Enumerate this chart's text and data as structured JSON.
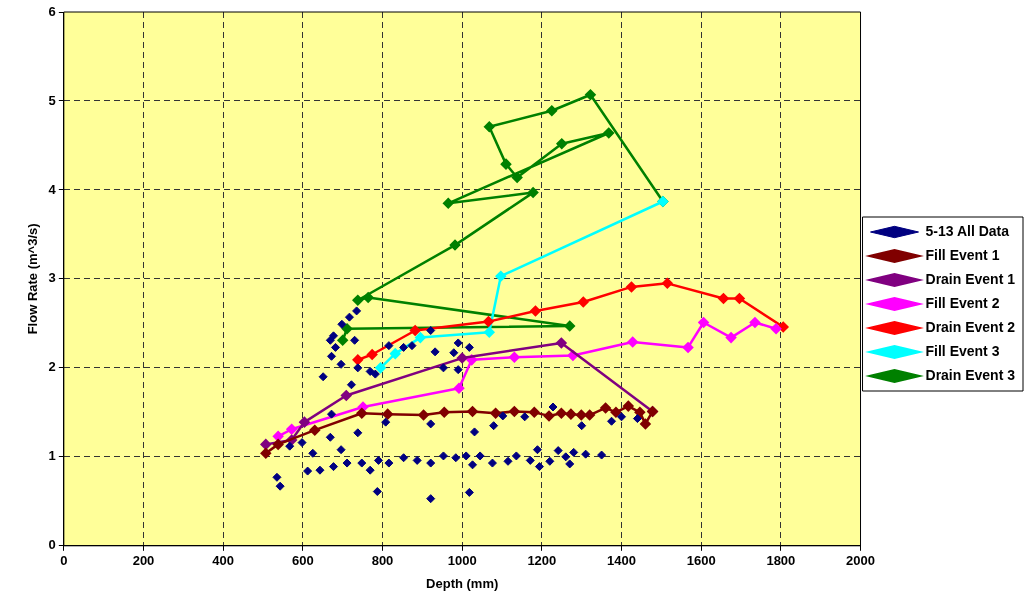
{
  "chart_data": {
    "type": "scatter",
    "xlabel": "Depth (mm)",
    "ylabel": "Flow Rate (m^3/s)",
    "xlim": [
      0,
      2000
    ],
    "xticks": [
      0,
      200,
      400,
      600,
      800,
      1000,
      1200,
      1400,
      1600,
      1800,
      2000
    ],
    "ylim": [
      0,
      6
    ],
    "yticks": [
      0,
      1,
      2,
      3,
      4,
      5,
      6
    ],
    "grid": true,
    "legend": "right",
    "marker": "diamond",
    "line_style": "solid",
    "series": [
      {
        "name": "5-13 All Data",
        "type": "scatter",
        "color": "#000080",
        "x": [
          535,
          543,
          787,
          921,
          1018,
          735,
          717,
          698,
          677,
          669,
          682,
          672,
          696,
          651,
          722,
          730,
          738,
          769,
          782,
          816,
          853,
          874,
          921,
          932,
          953,
          979,
          990,
          990,
          1018,
          672,
          738,
          808,
          921,
          1031,
          1079,
          1102,
          1157,
          1228,
          669,
          625,
          696,
          598,
          567,
          612,
          643,
          677,
          711,
          748,
          769,
          790,
          816,
          853,
          887,
          921,
          953,
          984,
          1010,
          1026,
          1045,
          1076,
          1115,
          1136,
          1171,
          1189,
          1194,
          1220,
          1241,
          1260,
          1270,
          1280,
          1310,
          1350,
          1300,
          1375,
          1400,
          1440
        ],
        "values": [
          0.77,
          0.67,
          0.61,
          0.53,
          0.6,
          2.64,
          2.57,
          2.49,
          2.36,
          2.31,
          2.23,
          2.13,
          2.04,
          1.9,
          1.81,
          2.31,
          2,
          1.96,
          1.93,
          2.25,
          2.23,
          2.25,
          2.42,
          2.18,
          2,
          2.17,
          2.28,
          1.98,
          2.23,
          1.48,
          1.27,
          1.39,
          1.37,
          1.28,
          1.35,
          1.46,
          1.45,
          1.56,
          1.22,
          1.04,
          1.08,
          1.16,
          1.12,
          0.84,
          0.85,
          0.89,
          0.93,
          0.93,
          0.85,
          0.96,
          0.93,
          0.99,
          0.96,
          0.93,
          1.01,
          0.99,
          1.01,
          0.91,
          1.01,
          0.93,
          0.95,
          1.01,
          0.96,
          1.08,
          0.89,
          0.95,
          1.07,
          1,
          0.92,
          1.05,
          1.03,
          1.02,
          1.35,
          1.4,
          1.45,
          1.43
        ]
      },
      {
        "name": "Fill Event 1",
        "type": "line",
        "color": "#800000",
        "x": [
          507,
          538,
          630,
          748,
          813,
          903,
          955,
          1026,
          1084,
          1131,
          1181,
          1218,
          1249,
          1273,
          1299,
          1320,
          1360,
          1386,
          1417,
          1446,
          1460,
          1478
        ],
        "values": [
          1.04,
          1.14,
          1.3,
          1.49,
          1.48,
          1.47,
          1.5,
          1.51,
          1.49,
          1.51,
          1.5,
          1.46,
          1.49,
          1.48,
          1.47,
          1.47,
          1.55,
          1.5,
          1.57,
          1.5,
          1.37,
          1.51
        ]
      },
      {
        "name": "Drain Event 1",
        "type": "line",
        "color": "#800080",
        "x": [
          507,
          572,
          604,
          709,
          1000,
          1249,
          1478
        ],
        "values": [
          1.14,
          1.19,
          1.39,
          1.69,
          2.11,
          2.28,
          1.51
        ]
      },
      {
        "name": "Fill Event 2",
        "type": "line",
        "color": "#ff00ff",
        "x": [
          538,
          572,
          751,
          992,
          1024,
          1131,
          1278,
          1428,
          1567,
          1606,
          1675,
          1735,
          1788
        ],
        "values": [
          1.23,
          1.31,
          1.56,
          1.77,
          2.09,
          2.12,
          2.14,
          2.29,
          2.23,
          2.51,
          2.34,
          2.51,
          2.44
        ]
      },
      {
        "name": "Drain Event 2",
        "type": "line",
        "color": "#ff0000",
        "x": [
          738,
          774,
          882,
          1066,
          1184,
          1304,
          1425,
          1515,
          1656,
          1696,
          1806
        ],
        "values": [
          2.09,
          2.15,
          2.42,
          2.52,
          2.64,
          2.74,
          2.91,
          2.95,
          2.78,
          2.78,
          2.46
        ]
      },
      {
        "name": "Fill Event 3",
        "type": "line",
        "color": "#00ffff",
        "x": [
          795,
          832,
          895,
          1068,
          1097,
          1504
        ],
        "values": [
          2,
          2.16,
          2.34,
          2.4,
          3.03,
          3.87
        ]
      },
      {
        "name": "Drain Event 3",
        "type": "line",
        "color": "#008000",
        "x": [
          1504,
          1322,
          1225,
          1068,
          1110,
          1138,
          1250,
          1368,
          965,
          1178,
          982,
          738,
          764,
          1270,
          711,
          700
        ],
        "values": [
          3.87,
          5.07,
          4.89,
          4.71,
          4.29,
          4.14,
          4.52,
          4.64,
          3.85,
          3.97,
          3.38,
          2.76,
          2.79,
          2.47,
          2.44,
          2.31
        ]
      }
    ]
  }
}
